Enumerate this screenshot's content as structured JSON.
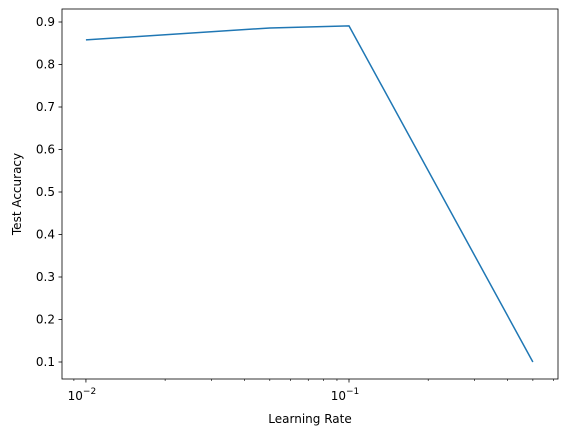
{
  "chart_data": {
    "type": "line",
    "xlabel": "Learning Rate",
    "ylabel": "Test Accuracy",
    "xscale": "log",
    "x": [
      0.01,
      0.05,
      0.1,
      0.5
    ],
    "series": [
      {
        "color": "#1f77b4",
        "values": [
          0.858,
          0.886,
          0.891,
          0.1
        ]
      }
    ],
    "xlim": [
      0.00811,
      0.623
    ],
    "ylim": [
      0.06,
      0.9306
    ],
    "xticks": [
      {
        "value": 0.01,
        "label": "10",
        "exponent": "−2"
      },
      {
        "value": 0.1,
        "label": "10",
        "exponent": "−1"
      }
    ],
    "xminorticks": [
      0.009,
      0.02,
      0.03,
      0.04,
      0.05,
      0.06,
      0.07,
      0.08,
      0.09,
      0.2,
      0.3,
      0.4,
      0.5,
      0.6
    ],
    "yticks": [
      0.1,
      0.2,
      0.3,
      0.4,
      0.5,
      0.6,
      0.7,
      0.8,
      0.9
    ]
  }
}
